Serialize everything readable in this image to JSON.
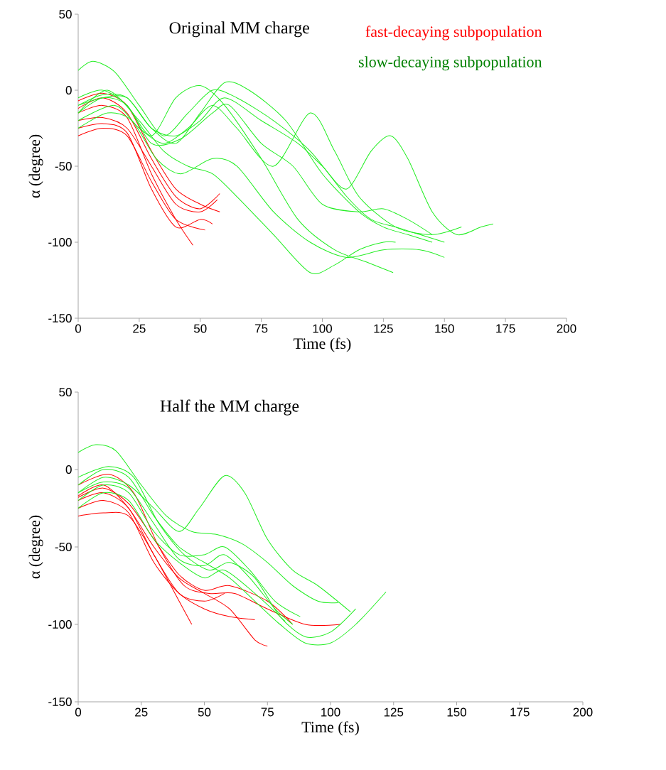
{
  "chart_data": [
    {
      "type": "line",
      "title": "Original MM charge",
      "xlabel": "Time (fs)",
      "ylabel": "α (degree)",
      "xlim": [
        0,
        200
      ],
      "ylim": [
        -150,
        50
      ],
      "xticks": [
        0,
        25,
        50,
        75,
        100,
        125,
        150,
        175,
        200
      ],
      "yticks": [
        -150,
        -100,
        -50,
        0,
        50
      ],
      "grid": false,
      "annotations": [
        "fast-decaying subpopulation",
        "slow-decaying subpopulation"
      ],
      "series": [
        {
          "color": "#ff0000",
          "x": [
            0,
            10,
            20,
            30,
            40,
            47
          ],
          "values": [
            -15,
            -10,
            -18,
            -55,
            -85,
            -102
          ]
        },
        {
          "color": "#ff0000",
          "x": [
            0,
            10,
            20,
            30,
            40,
            50,
            57
          ],
          "values": [
            -20,
            -18,
            -25,
            -50,
            -75,
            -80,
            -72
          ]
        },
        {
          "color": "#ff0000",
          "x": [
            0,
            10,
            20,
            30,
            40,
            50,
            58
          ],
          "values": [
            -12,
            -5,
            -15,
            -45,
            -70,
            -78,
            -68
          ]
        },
        {
          "color": "#ff0000",
          "x": [
            0,
            10,
            20,
            30,
            40,
            52
          ],
          "values": [
            -30,
            -25,
            -30,
            -60,
            -85,
            -92
          ]
        },
        {
          "color": "#ff0000",
          "x": [
            0,
            10,
            20,
            30,
            40,
            50,
            58
          ],
          "values": [
            -7,
            -2,
            -10,
            -40,
            -65,
            -75,
            -80
          ]
        },
        {
          "color": "#ff0000",
          "x": [
            0,
            10,
            20,
            30,
            40,
            50,
            55
          ],
          "values": [
            -25,
            -22,
            -28,
            -65,
            -90,
            -85,
            -88
          ]
        },
        {
          "color": "#22ee22",
          "x": [
            0,
            6,
            15,
            25,
            35,
            45,
            55,
            65,
            80,
            95,
            110,
            120,
            130,
            140,
            150
          ],
          "values": [
            13,
            19,
            12,
            -10,
            -30,
            -15,
            0,
            -5,
            -20,
            -40,
            -70,
            -85,
            -90,
            -95,
            -100
          ]
        },
        {
          "color": "#22ee22",
          "x": [
            0,
            10,
            20,
            30,
            40,
            50,
            60,
            70,
            85,
            100,
            115,
            125,
            135,
            145
          ],
          "values": [
            -10,
            -5,
            -5,
            -25,
            -35,
            -15,
            5,
            0,
            -20,
            -55,
            -80,
            -90,
            -95,
            -100
          ]
        },
        {
          "color": "#22ee22",
          "x": [
            0,
            12,
            25,
            35,
            45,
            55,
            65,
            80,
            95,
            105,
            115,
            125,
            130
          ],
          "values": [
            -15,
            0,
            -20,
            -40,
            -50,
            -55,
            -70,
            -95,
            -120,
            -115,
            -105,
            -100,
            -100
          ]
        },
        {
          "color": "#22ee22",
          "x": [
            0,
            10,
            20,
            30,
            40,
            50,
            60,
            75,
            90,
            105,
            118,
            129
          ],
          "values": [
            -5,
            0,
            -10,
            -30,
            -5,
            3,
            -10,
            -45,
            -85,
            -105,
            -113,
            -120
          ]
        },
        {
          "color": "#22ee22",
          "x": [
            0,
            10,
            20,
            30,
            40,
            50,
            60,
            75,
            90,
            100,
            110,
            120,
            128,
            135,
            145,
            155,
            165,
            170
          ],
          "values": [
            -10,
            -3,
            -5,
            -25,
            -30,
            -20,
            -5,
            -20,
            -35,
            -50,
            -65,
            -40,
            -30,
            -45,
            -80,
            -95,
            -90,
            -88
          ]
        },
        {
          "color": "#22ee22",
          "x": [
            0,
            15,
            25,
            35,
            45,
            55,
            65,
            80,
            95,
            105,
            115,
            130,
            145,
            157
          ],
          "values": [
            -20,
            -10,
            -25,
            -35,
            -25,
            -10,
            -25,
            -50,
            -15,
            -40,
            -70,
            -90,
            -95,
            -90
          ]
        },
        {
          "color": "#22ee22",
          "x": [
            0,
            12,
            22,
            32,
            42,
            55,
            65,
            80,
            95,
            110,
            125,
            140,
            150
          ],
          "values": [
            -25,
            -15,
            -20,
            -45,
            -55,
            -45,
            -50,
            -80,
            -100,
            -110,
            -105,
            -105,
            -110
          ]
        },
        {
          "color": "#22ee22",
          "x": [
            0,
            10,
            20,
            30,
            42,
            55,
            62,
            75,
            88,
            100,
            115,
            125,
            135,
            145
          ],
          "values": [
            -15,
            -5,
            -10,
            -35,
            -32,
            -15,
            -10,
            -35,
            -50,
            -75,
            -80,
            -78,
            -85,
            -95
          ]
        }
      ]
    },
    {
      "type": "line",
      "title": "Half the MM charge",
      "xlabel": "Time (fs)",
      "ylabel": "α (degree)",
      "xlim": [
        0,
        200
      ],
      "ylim": [
        -150,
        50
      ],
      "xticks": [
        0,
        25,
        50,
        75,
        100,
        125,
        150,
        175,
        200
      ],
      "yticks": [
        -150,
        -100,
        -50,
        0,
        50
      ],
      "grid": false,
      "series": [
        {
          "color": "#ff0000",
          "x": [
            0,
            10,
            20,
            30,
            40,
            50,
            60,
            70,
            75
          ],
          "values": [
            -17,
            -10,
            -25,
            -50,
            -70,
            -80,
            -90,
            -110,
            -114
          ]
        },
        {
          "color": "#ff0000",
          "x": [
            0,
            10,
            20,
            30,
            40,
            45
          ],
          "values": [
            -30,
            -28,
            -30,
            -55,
            -85,
            -100
          ]
        },
        {
          "color": "#ff0000",
          "x": [
            0,
            12,
            22,
            32,
            42,
            52,
            62,
            75,
            90,
            104
          ],
          "values": [
            -10,
            -3,
            -15,
            -50,
            -75,
            -80,
            -80,
            -90,
            -100,
            -100
          ]
        },
        {
          "color": "#ff0000",
          "x": [
            0,
            10,
            20,
            30,
            40,
            50,
            60,
            70
          ],
          "values": [
            -25,
            -20,
            -28,
            -60,
            -80,
            -90,
            -95,
            -97
          ]
        },
        {
          "color": "#ff0000",
          "x": [
            0,
            10,
            20,
            30,
            40,
            50,
            60,
            75,
            85
          ],
          "values": [
            -18,
            -12,
            -22,
            -45,
            -68,
            -78,
            -75,
            -85,
            -100
          ]
        },
        {
          "color": "#ff0000",
          "x": [
            0,
            10,
            20,
            30,
            40,
            50,
            58
          ],
          "values": [
            -20,
            -15,
            -25,
            -55,
            -80,
            -85,
            -80
          ]
        },
        {
          "color": "#22ee22",
          "x": [
            0,
            7,
            15,
            25,
            35,
            45,
            55,
            65,
            75,
            85,
            95,
            103
          ],
          "values": [
            11,
            16,
            12,
            -10,
            -30,
            -40,
            -42,
            -48,
            -60,
            -75,
            -85,
            -86
          ]
        },
        {
          "color": "#22ee22",
          "x": [
            0,
            10,
            20,
            30,
            40,
            48,
            58,
            66,
            75,
            85,
            95,
            108
          ],
          "values": [
            -15,
            -5,
            -10,
            -25,
            -40,
            -25,
            -4,
            -15,
            -45,
            -65,
            -75,
            -92
          ]
        },
        {
          "color": "#22ee22",
          "x": [
            0,
            10,
            20,
            30,
            40,
            50,
            60,
            70,
            80,
            90,
            100,
            110,
            122
          ],
          "values": [
            -10,
            0,
            -5,
            -30,
            -50,
            -60,
            -70,
            -85,
            -100,
            -112,
            -112,
            -100,
            -79
          ]
        },
        {
          "color": "#22ee22",
          "x": [
            0,
            10,
            20,
            30,
            40,
            50,
            58,
            68,
            78,
            88
          ],
          "values": [
            -20,
            -10,
            -15,
            -40,
            -55,
            -55,
            -50,
            -65,
            -85,
            -95
          ]
        },
        {
          "color": "#22ee22",
          "x": [
            0,
            12,
            22,
            32,
            42,
            52,
            60,
            70,
            80,
            90,
            100,
            110
          ],
          "values": [
            -5,
            2,
            -5,
            -35,
            -55,
            -65,
            -60,
            -70,
            -95,
            -108,
            -105,
            -90
          ]
        },
        {
          "color": "#22ee22",
          "x": [
            0,
            10,
            20,
            30,
            40,
            50,
            58,
            68,
            78,
            85
          ],
          "values": [
            -15,
            -8,
            -12,
            -35,
            -58,
            -62,
            -55,
            -70,
            -90,
            -100
          ]
        },
        {
          "color": "#22ee22",
          "x": [
            0,
            10,
            20,
            30,
            40,
            50,
            58,
            70,
            82
          ],
          "values": [
            -25,
            -15,
            -20,
            -45,
            -60,
            -70,
            -65,
            -80,
            -98
          ]
        }
      ]
    }
  ]
}
